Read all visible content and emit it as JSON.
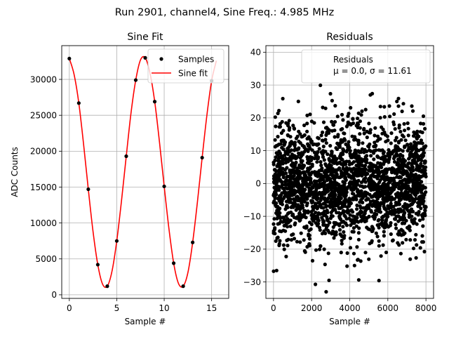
{
  "figure": {
    "suptitle": "Run 2901, channel4, Sine Freq.: 4.985 MHz"
  },
  "chart_data": [
    {
      "type": "line",
      "title": "Sine Fit",
      "xlabel": "Sample #",
      "ylabel": "ADC Counts",
      "xlim": [
        -0.8,
        16.8
      ],
      "ylim": [
        -500,
        34700
      ],
      "xticks": [
        0,
        5,
        10,
        15
      ],
      "yticks": [
        0,
        5000,
        10000,
        15000,
        20000,
        25000,
        30000
      ],
      "grid": true,
      "legend": {
        "position": "top-right",
        "entries": [
          "Samples",
          "Sine fit"
        ]
      },
      "series": [
        {
          "name": "Samples",
          "style": "points",
          "color": "#000000",
          "x": [
            0,
            1,
            2,
            3,
            4,
            5,
            6,
            7,
            8,
            9,
            10,
            11,
            12,
            13,
            14,
            15
          ],
          "y": [
            32900,
            26700,
            14700,
            4200,
            1200,
            7500,
            19300,
            29900,
            33000,
            26900,
            15100,
            4400,
            1200,
            7300,
            19100,
            29800
          ]
        },
        {
          "name": "Sine fit",
          "style": "line",
          "color": "#ff0000",
          "x": [
            0,
            0.5,
            1,
            1.5,
            2,
            2.5,
            3,
            3.5,
            4,
            4.5,
            5,
            5.5,
            6,
            6.5,
            7,
            7.5,
            8,
            8.5,
            9,
            9.5,
            10,
            10.5,
            11,
            11.5,
            12,
            12.5,
            13,
            13.5,
            14,
            14.5,
            15,
            15.5
          ],
          "y": [
            32900,
            30700,
            26700,
            21000,
            14700,
            8800,
            4200,
            1500,
            1200,
            3300,
            7500,
            13100,
            19300,
            25300,
            29900,
            32700,
            33000,
            30900,
            26900,
            21300,
            15100,
            9200,
            4400,
            1600,
            1200,
            3100,
            7300,
            12900,
            19100,
            25000,
            29800,
            32600
          ]
        }
      ]
    },
    {
      "type": "scatter",
      "title": "Residuals",
      "xlabel": "Sample #",
      "ylabel": "",
      "xlim": [
        -400,
        8400
      ],
      "ylim": [
        -35,
        42
      ],
      "xticks": [
        0,
        2000,
        4000,
        6000,
        8000
      ],
      "yticks": [
        -30,
        -20,
        -10,
        0,
        10,
        20,
        30,
        40
      ],
      "grid": true,
      "legend": {
        "position": "top-right",
        "entries": [
          "Residuals\nμ = 0.0, σ = 11.61"
        ]
      },
      "series": [
        {
          "name": "Residuals\nμ = 0.0, σ = 11.61",
          "color": "#000000",
          "n_points": 8000,
          "mu": 0.0,
          "sigma": 11.61,
          "x_range": [
            0,
            8000
          ]
        }
      ]
    }
  ]
}
